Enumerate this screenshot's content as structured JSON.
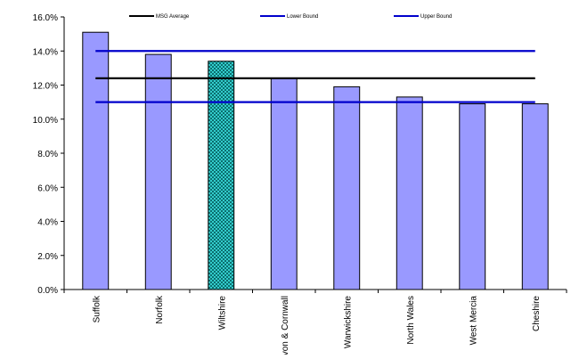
{
  "chart_data": {
    "type": "bar",
    "categories": [
      "Suffolk",
      "Norfolk",
      "Wiltshire",
      "Devon & Cornwall",
      "Warwickshire",
      "North Wales",
      "West Mercia",
      "Cheshire"
    ],
    "values": [
      15.1,
      13.8,
      13.4,
      12.4,
      11.9,
      11.3,
      10.9,
      10.9
    ],
    "highlight_index": 2,
    "ylim": [
      0,
      16
    ],
    "y_ticks": [
      "0.0%",
      "2.0%",
      "4.0%",
      "6.0%",
      "8.0%",
      "10.0%",
      "12.0%",
      "14.0%",
      "16.0%"
    ],
    "y_tick_values": [
      0,
      2,
      4,
      6,
      8,
      10,
      12,
      14,
      16
    ],
    "reference_lines": [
      {
        "name": "MSG Average",
        "value": 12.4,
        "color": "#000000"
      },
      {
        "name": "Lower Bound",
        "value": 11.0,
        "color": "#0000cc"
      },
      {
        "name": "Upper Bound",
        "value": 14.0,
        "color": "#0000cc"
      }
    ],
    "bar_color": "#9999ff",
    "highlight_color": "#33cccc",
    "grid": false,
    "legend_position": "top"
  }
}
